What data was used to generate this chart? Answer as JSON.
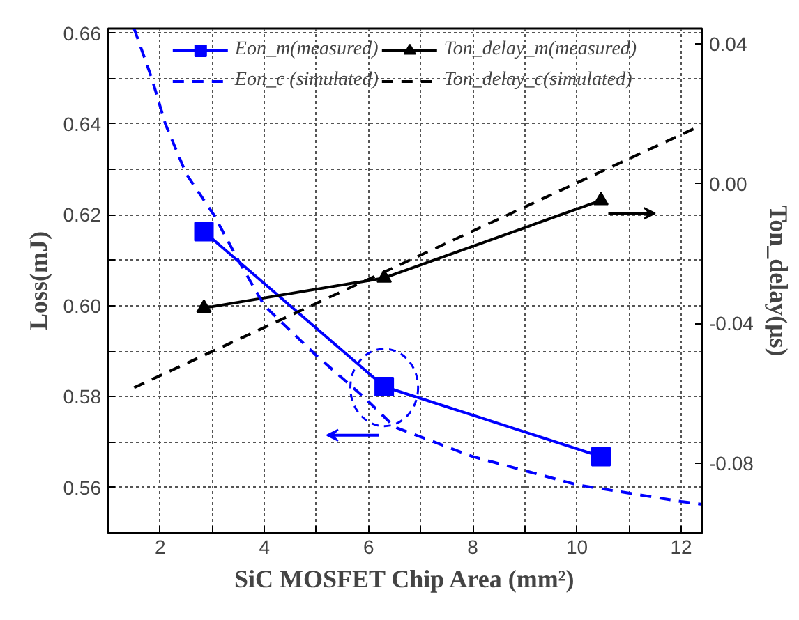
{
  "chart_data": {
    "type": "line",
    "xlabel": "SiC MOSFET Chip Area (mm²)",
    "ylabel": "Loss(mJ)",
    "y2label": "Ton_delay(μs)",
    "xlim": [
      1,
      12.4
    ],
    "ylim": [
      0.55,
      0.661
    ],
    "y2lim": [
      -0.1,
      0.0444
    ],
    "xticks": [
      2,
      {
        "value": 3,
        "label": null
      },
      4,
      {
        "value": 5,
        "label": null
      },
      6,
      {
        "value": 7,
        "label": null
      },
      8,
      {
        "value": 9,
        "label": null
      },
      10,
      {
        "value": 11,
        "label": null
      },
      12
    ],
    "yticks": [
      0.56,
      {
        "value": 0.57,
        "label": null
      },
      0.58,
      {
        "value": 0.59,
        "label": null
      },
      {
        "value": 0.6,
        "label": "0.60"
      },
      {
        "value": 0.61,
        "label": null
      },
      0.62,
      {
        "value": 0.63,
        "label": null
      },
      0.64,
      {
        "value": 0.65,
        "label": null
      },
      0.66
    ],
    "y2ticks": [
      -0.08,
      -0.04,
      {
        "value": 0,
        "label": "0.00"
      },
      0.04
    ],
    "grid": true,
    "legend": "top",
    "series": [
      {
        "name": "Eon_m(measured)",
        "color": "#0000ff",
        "marker": "square",
        "line_style": "solid",
        "x": [
          2.84,
          6.3,
          10.46
        ],
        "values": [
          0.6163,
          0.5822,
          0.5668
        ]
      },
      {
        "name": "Ton_delay_m(measured)",
        "color": "#000000",
        "marker": "triangle",
        "line_style": "solid",
        "axis": "y2",
        "x": [
          2.84,
          6.3,
          10.46
        ],
        "values": [
          -0.0356,
          -0.027,
          -0.0048
        ]
      },
      {
        "name": "Eon_c (simulated)",
        "color": "#0000ff",
        "marker": "none",
        "line_style": "dashed",
        "x": [
          1.5,
          1.84,
          2.1,
          2.5,
          3.03,
          3.5,
          4.0,
          5.0,
          5.9,
          6.5,
          8,
          10,
          12,
          12.4
        ],
        "values": [
          0.661,
          0.65,
          0.64,
          0.629,
          0.62,
          0.61,
          0.6,
          0.589,
          0.58,
          0.5733,
          0.5668,
          0.5606,
          0.5569,
          0.5563
        ]
      },
      {
        "name": "Ton_delay_c(simulated)",
        "color": "#000000",
        "marker": "none",
        "line_style": "dashed",
        "axis": "y2",
        "x": [
          1.5,
          12.4
        ],
        "values": [
          -0.0584,
          0.0168
        ]
      }
    ]
  }
}
